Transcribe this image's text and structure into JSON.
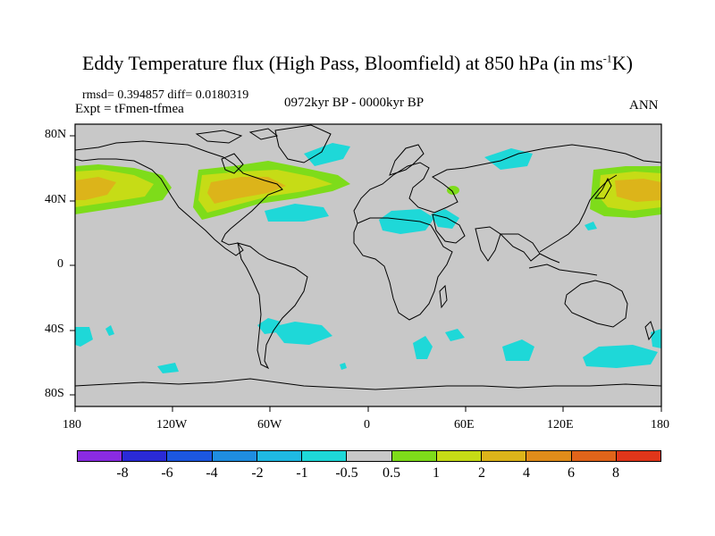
{
  "title": {
    "main": "Eddy Temperature flux (High Pass, Bloomfield) at 850 hPa (in ms",
    "sup": "-1",
    "end": "K)"
  },
  "stats": "rmsd= 0.394857 diff= 0.0180319",
  "experiment": "Expt = tFmen-tfmea",
  "period": "0972kyr BP - 0000kyr BP",
  "season": "ANN",
  "map": {
    "projection": "cylindrical-equidistant",
    "lon_range": [
      -180,
      180
    ],
    "lat_range": [
      -90,
      90
    ],
    "background_color": "#c8c8c8",
    "coastline_color": "#000000",
    "lon_ticks": [
      "180",
      "120W",
      "60W",
      "0",
      "60E",
      "120E",
      "180"
    ],
    "lat_ticks": [
      "80N",
      "40N",
      "0",
      "40S",
      "80S"
    ],
    "anomaly_regions": [
      {
        "label": "North Pacific east",
        "level": "2 to 4",
        "color": "#d5be1a"
      },
      {
        "label": "North Atlantic storm track",
        "level": "2 to 4",
        "color": "#d5be1a"
      },
      {
        "label": "Northwest Pacific",
        "level": "2 to 4",
        "color": "#d5be1a"
      },
      {
        "label": "Sahara / Arabia",
        "level": "-1 to -0.5",
        "color": "#1ed8d8"
      },
      {
        "label": "Southern Ocean patches",
        "level": "-1 to -0.5",
        "color": "#1ed8d8"
      }
    ]
  },
  "colorbar": {
    "colors": [
      "#8a2be2",
      "#2a2ad6",
      "#1c57e0",
      "#1f8de0",
      "#1fb9e3",
      "#1ed8d8",
      "#c8c8c8",
      "#7edc1a",
      "#c6dc16",
      "#dcb41a",
      "#e08c1a",
      "#e0641a",
      "#e0361a"
    ],
    "labels": [
      "-8",
      "-6",
      "-4",
      "-2",
      "-1",
      "-0.5",
      "0.5",
      "1",
      "2",
      "4",
      "6",
      "8"
    ]
  }
}
